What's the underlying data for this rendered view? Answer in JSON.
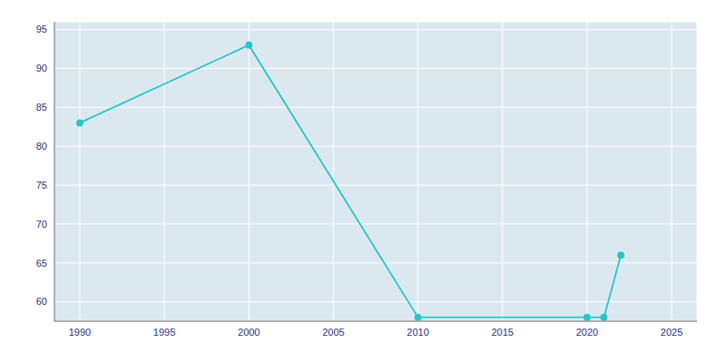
{
  "chart_data": {
    "type": "line",
    "x": [
      1990,
      2000,
      2010,
      2020,
      2021,
      2022
    ],
    "values": [
      83,
      93,
      58,
      58,
      58,
      66
    ],
    "color": "#26c6c6",
    "marker": "circle",
    "xlim": [
      1988.5,
      2026.5
    ],
    "xticks": [
      1990,
      1995,
      2000,
      2005,
      2010,
      2015,
      2020,
      2025
    ],
    "ylim": [
      57.5,
      96
    ],
    "yticks": [
      60,
      65,
      70,
      75,
      80,
      85,
      90,
      95
    ],
    "grid": true
  }
}
